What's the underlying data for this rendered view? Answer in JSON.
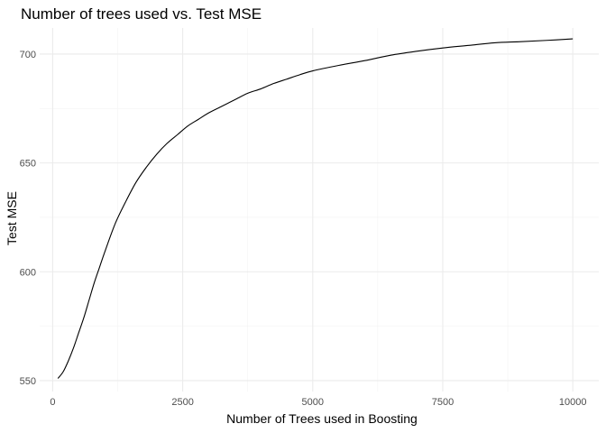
{
  "chart_data": {
    "type": "line",
    "title": "Number of trees used vs. Test MSE",
    "xlabel": "Number of Trees used in Boosting",
    "ylabel": "Test MSE",
    "xlim": [
      -250,
      10500
    ],
    "ylim": [
      545,
      712
    ],
    "x_ticks": [
      0,
      2500,
      5000,
      7500,
      10000
    ],
    "x_tick_labels": [
      "0",
      "2500",
      "5000",
      "7500",
      "10000"
    ],
    "y_ticks": [
      550,
      600,
      650,
      700
    ],
    "y_tick_labels": [
      "550",
      "600",
      "650",
      "700"
    ],
    "grid": true,
    "legend": "none",
    "series": [
      {
        "color": "#000000",
        "x": [
          100,
          200,
          300,
          400,
          500,
          600,
          700,
          800,
          900,
          1000,
          1200,
          1400,
          1600,
          1800,
          2000,
          2200,
          2400,
          2600,
          2800,
          3000,
          3250,
          3500,
          3750,
          4000,
          4250,
          4500,
          4750,
          5000,
          5500,
          6000,
          6500,
          7000,
          7500,
          8000,
          8500,
          9000,
          9500,
          10000
        ],
        "values": [
          551,
          554,
          559,
          565,
          572,
          579,
          587,
          595,
          602,
          609,
          622,
          632,
          641,
          648,
          654,
          659,
          663,
          667,
          670,
          673,
          676,
          679,
          682,
          684,
          686.5,
          688.5,
          690.5,
          692.3,
          694.8,
          697,
          699.5,
          701.3,
          702.8,
          704,
          705.2,
          705.7,
          706.3,
          707
        ]
      }
    ]
  }
}
